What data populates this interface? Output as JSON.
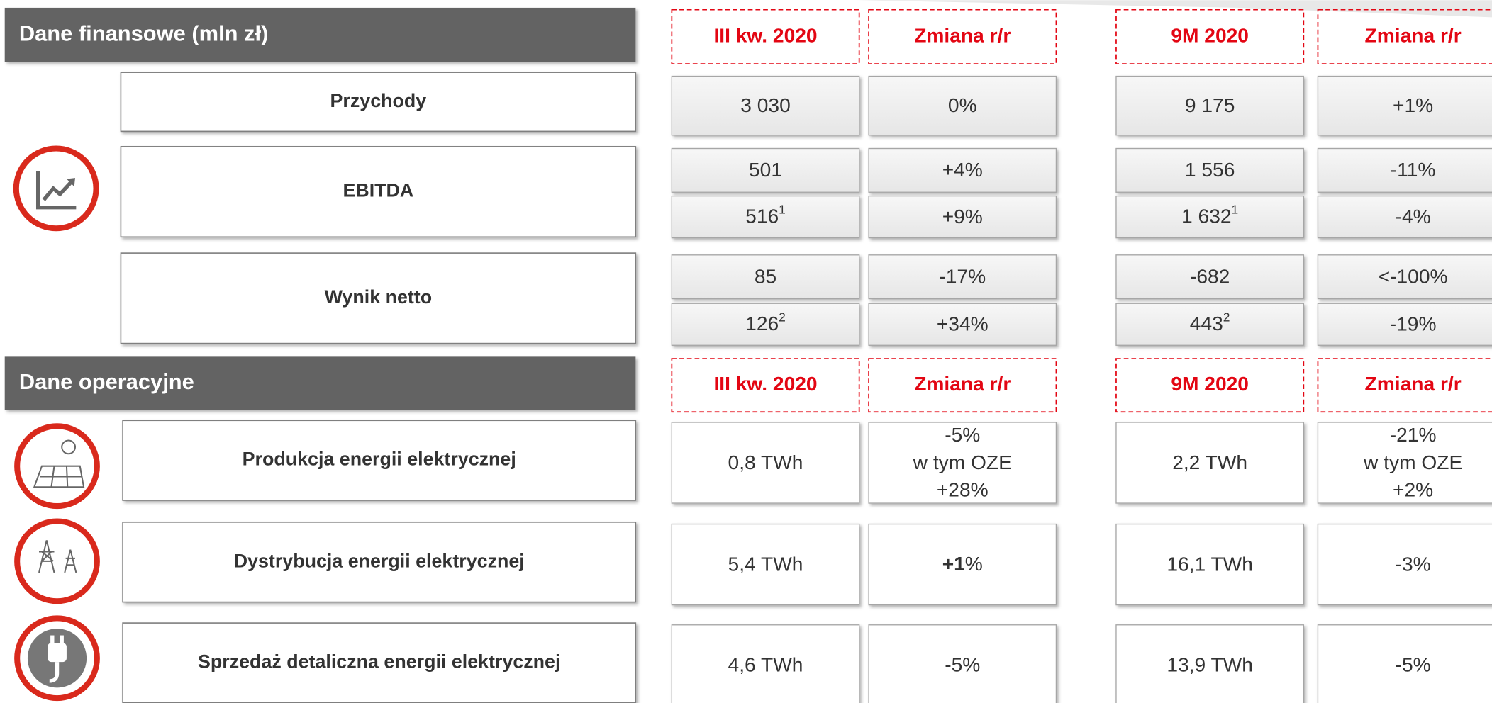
{
  "sections": [
    {
      "title": "Dane finansowe (mln zł)",
      "headers": [
        "III kw. 2020",
        "Zmiana r/r",
        "9M 2020",
        "Zmiana r/r"
      ],
      "rows": [
        {
          "label": "Przychody",
          "lines": [
            [
              "3  030",
              "0%",
              "9 175",
              "+1%"
            ]
          ]
        },
        {
          "label": "EBITDA",
          "lines": [
            [
              "501",
              "+4%",
              "1 556",
              "-11%"
            ],
            [
              {
                "text": "516",
                "sup": "1"
              },
              "+9%",
              {
                "text": "1 632",
                "sup": "1"
              },
              "-4%"
            ]
          ]
        },
        {
          "label": "Wynik netto",
          "lines": [
            [
              "85",
              "-17%",
              "-682",
              "<-100%"
            ],
            [
              {
                "text": "126",
                "sup": "2"
              },
              "+34%",
              {
                "text": "443",
                "sup": "2"
              },
              "-19%"
            ]
          ]
        }
      ]
    },
    {
      "title": "Dane operacyjne",
      "headers": [
        "III kw. 2020",
        "Zmiana r/r",
        "9M 2020",
        "Zmiana r/r"
      ],
      "rows": [
        {
          "label": "Produkcja energii elektrycznej",
          "lines": [
            [
              "0,8 TWh",
              [
                "-5%",
                "w tym OZE",
                "+28%"
              ],
              "2,2 TWh",
              [
                "-21%",
                "w tym OZE",
                "+2%"
              ]
            ]
          ]
        },
        {
          "label": "Dystrybucja energii elektrycznej",
          "lines": [
            [
              "5,4 TWh",
              {
                "strong": "+1",
                "text": "%"
              },
              "16,1 TWh",
              "-3%"
            ]
          ]
        },
        {
          "label": "Sprzedaż detaliczna energii elektrycznej",
          "lines": [
            [
              "4,6 TWh",
              "-5%",
              "13,9 TWh",
              "-5%"
            ]
          ]
        }
      ]
    }
  ]
}
